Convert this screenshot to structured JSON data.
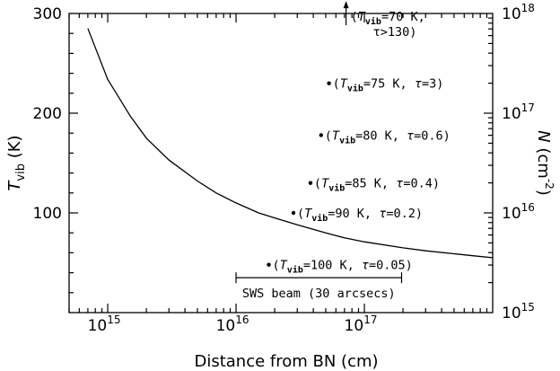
{
  "chart_data": {
    "type": "line",
    "xlabel": "Distance from BN (cm)",
    "ylabel_left_main": "T",
    "ylabel_left_sub": "vib",
    "ylabel_left_unit": " (K)",
    "ylabel_right_main": "N",
    "ylabel_right_unit": "(cm",
    "ylabel_right_exp": "-2",
    "ylabel_right_close": ")",
    "x_scale": "log",
    "xlim": [
      500000000000000.0,
      1e+18
    ],
    "ylim_left": [
      0,
      300
    ],
    "ylim_right": [
      1000000000000000.0,
      1e+18
    ],
    "x_ticks": [
      {
        "value": 1000000000000000.0,
        "base": "10",
        "exp": "15"
      },
      {
        "value": 1e+16,
        "base": "10",
        "exp": "16"
      },
      {
        "value": 1e+17,
        "base": "10",
        "exp": "17"
      }
    ],
    "y_ticks_left": [
      {
        "value": 100,
        "label": "100"
      },
      {
        "value": 200,
        "label": "200"
      },
      {
        "value": 300,
        "label": "300"
      }
    ],
    "y_ticks_right": [
      {
        "value": 1000000000000000.0,
        "base": "10",
        "exp": "15"
      },
      {
        "value": 1e+16,
        "base": "10",
        "exp": "16"
      },
      {
        "value": 1e+17,
        "base": "10",
        "exp": "17"
      },
      {
        "value": 1e+18,
        "base": "10",
        "exp": "18"
      }
    ],
    "series": [
      {
        "x": [
          700000000000000.0,
          1000000000000000.0,
          1500000000000000.0,
          2000000000000000.0,
          3000000000000000.0,
          5000000000000000.0,
          7000000000000000.0,
          1e+16,
          1.5e+16,
          2e+16,
          3e+16,
          5e+16,
          7e+16,
          1e+17,
          2e+17,
          3e+17,
          5e+17,
          7e+17,
          1e+18
        ],
        "y": [
          285,
          234,
          197,
          175,
          153,
          132,
          120,
          110,
          100,
          95,
          88,
          80,
          75,
          71,
          65,
          62,
          59,
          57,
          55
        ]
      }
    ],
    "points": [
      {
        "x": 5.3e+16,
        "y": 230,
        "tvib": "=75 K, ",
        "tau": "=3)"
      },
      {
        "x": 4.6e+16,
        "y": 178,
        "tvib": "=80 K, ",
        "tau": "=0.6)"
      },
      {
        "x": 3.8e+16,
        "y": 130,
        "tvib": "=85 K, ",
        "tau": "=0.4)"
      },
      {
        "x": 2.8e+16,
        "y": 100,
        "tvib": "=90 K, ",
        "tau": "=0.2)"
      },
      {
        "x": 1.8e+16,
        "y": 48,
        "tvib": "=100 K, ",
        "tau": "=0.05)"
      }
    ],
    "upper_limit": {
      "x": 7.2e+16,
      "y_base": 290,
      "line1_tvib": "=70 K,",
      "line2": "τ>130)"
    },
    "beam": {
      "x_start": 1e+16,
      "x_end": 1.95e+17,
      "y": 35,
      "label": "SWS beam (30 arcsecs)"
    },
    "annotation_text": {
      "open_paren": "(",
      "t_main": "T",
      "t_sub": "vib",
      "tau_symbol": "τ"
    }
  }
}
